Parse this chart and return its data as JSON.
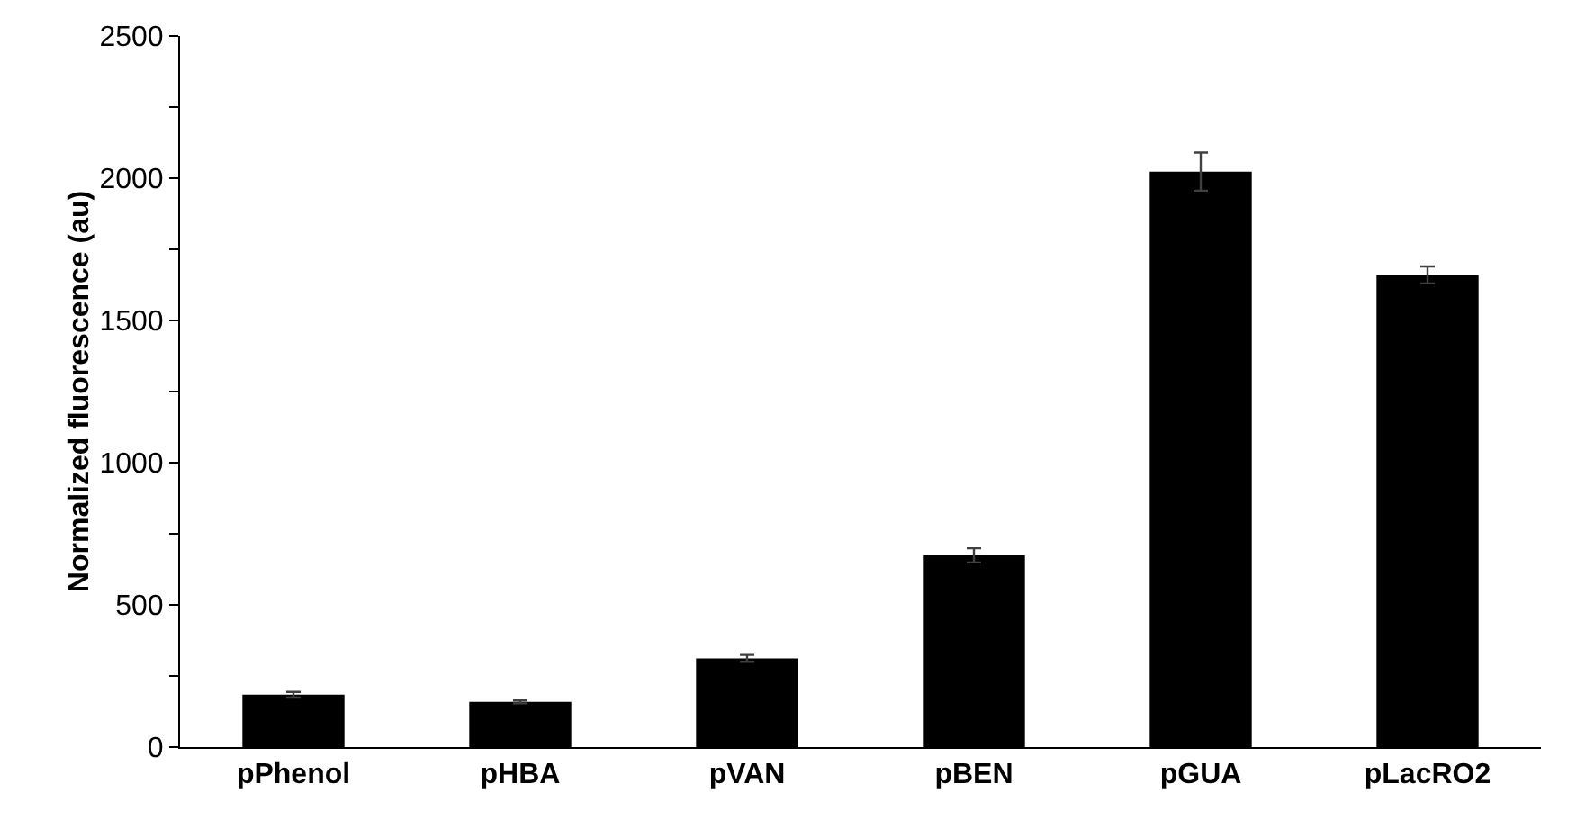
{
  "chart_data": {
    "type": "bar",
    "ylabel": "Normalized fluorescence (au)",
    "categories": [
      "pPhenol",
      "pHBA",
      "pVAN",
      "pBEN",
      "pGUA",
      "pLacRO2"
    ],
    "values": [
      184,
      159,
      312,
      674,
      2023,
      1660
    ],
    "errors": [
      10,
      5,
      12,
      25,
      67,
      30
    ],
    "color": "#000000",
    "ylim": [
      0,
      2500
    ],
    "yticks": [
      0,
      {
        "value": 250,
        "label": null
      },
      500,
      {
        "value": 750,
        "label": null
      },
      1000,
      {
        "value": 1250,
        "label": null
      },
      1500,
      {
        "value": 1750,
        "label": null
      },
      2000,
      {
        "value": 2250,
        "label": null
      },
      2500
    ],
    "grid": false
  }
}
